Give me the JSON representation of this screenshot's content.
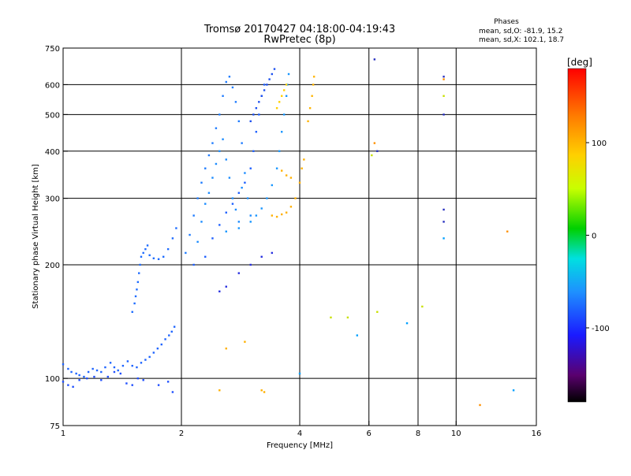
{
  "chart_data": {
    "type": "scatter",
    "title": "Tromsø 20170427 04:18:00-04:19:43",
    "subtitle": "RwPretec (8p)",
    "xlabel": "Frequency [MHz]",
    "ylabel": "Stationary phase Virtual Height [km]",
    "x_scale": "log",
    "y_scale": "log",
    "xlim": [
      1,
      16
    ],
    "ylim": [
      75,
      750
    ],
    "x_ticks": [
      1,
      2,
      4,
      6,
      8,
      10,
      16
    ],
    "x_tick_labels": [
      "1",
      "2",
      "4",
      "6",
      "8",
      "10",
      "16"
    ],
    "x_grid": [
      2,
      4,
      6,
      8,
      10
    ],
    "y_ticks": [
      75,
      100,
      200,
      300,
      400,
      500,
      600,
      750
    ],
    "y_tick_labels": [
      "75",
      "100",
      "200",
      "300",
      "400",
      "500",
      "600",
      "750"
    ],
    "y_grid": [
      100,
      200,
      300,
      400,
      500,
      600
    ],
    "grid": true,
    "stats": {
      "heading": "Phases",
      "line_o": "mean, sd,O: -81.9, 15.2",
      "line_x": "mean, sd,X: 102.1, 18.7"
    },
    "colorbar": {
      "label": "[deg]",
      "range": [
        -180,
        180
      ],
      "ticks": [
        100,
        0,
        -100
      ],
      "tick_labels": [
        "100",
        "0",
        "-100"
      ],
      "placement": "right"
    },
    "series": [
      {
        "phase": -100,
        "color": "#1e64ff",
        "points": [
          [
            1.0,
            109
          ],
          [
            1.03,
            106
          ],
          [
            1.05,
            104
          ],
          [
            1.08,
            103
          ],
          [
            1.1,
            102
          ],
          [
            1.13,
            101
          ],
          [
            1.16,
            104
          ],
          [
            1.19,
            106
          ],
          [
            1.22,
            105
          ],
          [
            1.25,
            104
          ],
          [
            1.28,
            107
          ],
          [
            1.32,
            110
          ],
          [
            1.35,
            107
          ],
          [
            1.38,
            105
          ],
          [
            1.42,
            108
          ],
          [
            1.46,
            111
          ],
          [
            1.5,
            108
          ],
          [
            1.54,
            107
          ],
          [
            1.58,
            110
          ],
          [
            1.62,
            112
          ],
          [
            1.66,
            114
          ],
          [
            1.7,
            117
          ],
          [
            1.74,
            120
          ],
          [
            1.78,
            123
          ],
          [
            1.82,
            127
          ],
          [
            1.86,
            130
          ],
          [
            1.89,
            133
          ],
          [
            1.92,
            137
          ]
        ]
      },
      {
        "phase": -110,
        "color": "#2050ff",
        "points": [
          [
            1.0,
            98
          ],
          [
            1.03,
            96
          ],
          [
            1.06,
            95
          ],
          [
            1.1,
            99
          ],
          [
            1.15,
            100
          ],
          [
            1.2,
            101
          ],
          [
            1.25,
            99
          ],
          [
            1.3,
            101
          ],
          [
            1.35,
            104
          ],
          [
            1.4,
            103
          ],
          [
            1.45,
            97
          ],
          [
            1.5,
            96
          ],
          [
            1.55,
            100
          ],
          [
            1.6,
            99
          ],
          [
            1.75,
            96
          ],
          [
            1.85,
            98
          ],
          [
            1.9,
            92
          ]
        ]
      },
      {
        "phase": -100,
        "color": "#1e6cff",
        "points": [
          [
            1.5,
            150
          ],
          [
            1.52,
            158
          ],
          [
            1.53,
            165
          ],
          [
            1.54,
            172
          ],
          [
            1.55,
            180
          ],
          [
            1.56,
            190
          ],
          [
            1.57,
            200
          ],
          [
            1.58,
            210
          ],
          [
            1.6,
            215
          ],
          [
            1.62,
            220
          ],
          [
            1.64,
            225
          ],
          [
            1.66,
            212
          ],
          [
            1.7,
            208
          ],
          [
            1.75,
            207
          ],
          [
            1.8,
            210
          ],
          [
            1.85,
            220
          ],
          [
            1.9,
            235
          ],
          [
            1.94,
            250
          ]
        ]
      },
      {
        "phase": -95,
        "color": "#1f7cff",
        "points": [
          [
            2.05,
            215
          ],
          [
            2.1,
            240
          ],
          [
            2.15,
            270
          ],
          [
            2.2,
            300
          ],
          [
            2.25,
            330
          ],
          [
            2.3,
            360
          ],
          [
            2.35,
            390
          ],
          [
            2.4,
            420
          ],
          [
            2.45,
            460
          ],
          [
            2.5,
            500
          ],
          [
            2.55,
            560
          ],
          [
            2.6,
            610
          ],
          [
            2.65,
            630
          ],
          [
            2.7,
            590
          ],
          [
            2.75,
            540
          ],
          [
            2.8,
            480
          ],
          [
            2.85,
            420
          ]
        ]
      },
      {
        "phase": -90,
        "color": "#1c8cff",
        "points": [
          [
            2.2,
            230
          ],
          [
            2.25,
            260
          ],
          [
            2.3,
            290
          ],
          [
            2.35,
            310
          ],
          [
            2.4,
            340
          ],
          [
            2.45,
            370
          ],
          [
            2.5,
            400
          ],
          [
            2.55,
            430
          ],
          [
            2.6,
            380
          ],
          [
            2.65,
            340
          ],
          [
            2.7,
            300
          ],
          [
            2.75,
            280
          ],
          [
            2.8,
            260
          ],
          [
            2.85,
            320
          ],
          [
            2.9,
            350
          ],
          [
            2.95,
            300
          ],
          [
            3.0,
            270
          ]
        ]
      },
      {
        "phase": -100,
        "color": "#1e60ff",
        "points": [
          [
            2.15,
            200
          ],
          [
            2.3,
            210
          ],
          [
            2.4,
            235
          ],
          [
            2.5,
            255
          ],
          [
            2.6,
            275
          ],
          [
            2.7,
            290
          ],
          [
            2.8,
            310
          ],
          [
            2.9,
            330
          ],
          [
            3.0,
            360
          ],
          [
            3.05,
            400
          ],
          [
            3.1,
            450
          ],
          [
            3.15,
            500
          ],
          [
            3.2,
            560
          ],
          [
            3.25,
            600
          ]
        ]
      },
      {
        "phase": -105,
        "color": "#1c50f0",
        "points": [
          [
            3.0,
            480
          ],
          [
            3.05,
            500
          ],
          [
            3.1,
            520
          ],
          [
            3.15,
            540
          ],
          [
            3.2,
            560
          ],
          [
            3.25,
            580
          ],
          [
            3.3,
            600
          ],
          [
            3.35,
            620
          ],
          [
            3.4,
            640
          ],
          [
            3.45,
            660
          ]
        ]
      },
      {
        "phase": -90,
        "color": "#1896ff",
        "points": [
          [
            2.6,
            245
          ],
          [
            2.8,
            250
          ],
          [
            3.0,
            260
          ],
          [
            3.1,
            270
          ],
          [
            3.2,
            282
          ],
          [
            3.3,
            300
          ],
          [
            3.4,
            325
          ],
          [
            3.5,
            360
          ],
          [
            3.55,
            400
          ],
          [
            3.6,
            450
          ],
          [
            3.65,
            500
          ],
          [
            3.7,
            560
          ],
          [
            3.72,
            600
          ],
          [
            3.75,
            640
          ]
        ]
      },
      {
        "phase": -120,
        "color": "#2830e0",
        "points": [
          [
            2.5,
            170
          ],
          [
            2.6,
            175
          ],
          [
            2.8,
            190
          ],
          [
            3.0,
            200
          ],
          [
            3.2,
            210
          ],
          [
            3.4,
            215
          ]
        ]
      },
      {
        "phase": 115,
        "color": "#ffb000",
        "points": [
          [
            3.4,
            270
          ],
          [
            3.5,
            268
          ],
          [
            3.6,
            272
          ],
          [
            3.7,
            275
          ],
          [
            3.8,
            285
          ],
          [
            3.9,
            300
          ],
          [
            4.0,
            330
          ],
          [
            4.05,
            360
          ],
          [
            4.1,
            380
          ],
          [
            3.6,
            355
          ],
          [
            3.7,
            345
          ],
          [
            3.8,
            340
          ]
        ]
      },
      {
        "phase": 115,
        "color": "#ffb400",
        "points": [
          [
            4.2,
            480
          ],
          [
            4.25,
            520
          ],
          [
            4.3,
            560
          ],
          [
            4.33,
            600
          ],
          [
            4.35,
            630
          ]
        ]
      },
      {
        "phase": 90,
        "color": "#ffd000",
        "points": [
          [
            3.5,
            520
          ],
          [
            3.55,
            540
          ],
          [
            3.6,
            560
          ],
          [
            3.65,
            580
          ],
          [
            3.7,
            600
          ]
        ]
      },
      {
        "phase": 110,
        "color": "#ffb000",
        "points": [
          [
            2.6,
            120
          ],
          [
            2.9,
            125
          ],
          [
            3.2,
            93
          ],
          [
            3.25,
            92
          ],
          [
            2.5,
            93
          ]
        ]
      },
      {
        "phase": -120,
        "color": "#2830c0",
        "points": [
          [
            6.2,
            700
          ],
          [
            6.3,
            400
          ],
          [
            9.3,
            630
          ],
          [
            9.3,
            500
          ],
          [
            9.3,
            280
          ],
          [
            9.3,
            260
          ]
        ]
      },
      {
        "phase": 120,
        "color": "#ff9000",
        "points": [
          [
            6.2,
            420
          ],
          [
            9.3,
            620
          ],
          [
            13.5,
            245
          ],
          [
            11.5,
            85
          ]
        ]
      },
      {
        "phase": 60,
        "color": "#c8e000",
        "points": [
          [
            6.1,
            390
          ],
          [
            9.3,
            560
          ],
          [
            4.8,
            145
          ],
          [
            5.3,
            145
          ],
          [
            6.3,
            150
          ],
          [
            8.2,
            155
          ]
        ]
      },
      {
        "phase": -80,
        "color": "#00a0ff",
        "points": [
          [
            9.3,
            235
          ],
          [
            7.5,
            140
          ],
          [
            4.0,
            103
          ],
          [
            5.6,
            130
          ],
          [
            14.0,
            93
          ]
        ]
      }
    ]
  }
}
